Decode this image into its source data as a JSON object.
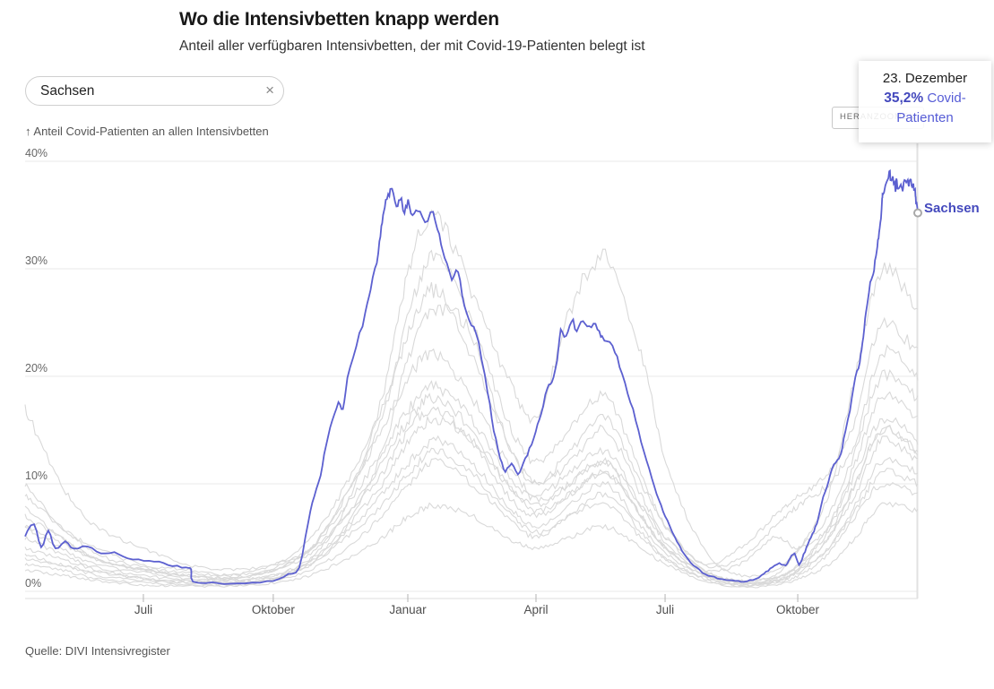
{
  "header": {
    "title": "Wo die Intensivbetten knapp werden",
    "subtitle": "Anteil aller verfügbaren Intensivbetten, der mit Covid-19-Patienten belegt ist"
  },
  "search": {
    "value": "Sachsen",
    "clear_label": "×"
  },
  "zoom_button": {
    "label": "HERANZOOMEN"
  },
  "tooltip": {
    "date": "23. Dezember",
    "value": "35,2",
    "percent": "%",
    "rest": " Covid-Patienten"
  },
  "chart": {
    "y_axis_label": "↑ Anteil Covid-Patienten an allen Intensivbetten",
    "end_label": "Sachsen"
  },
  "source": {
    "text": "Quelle: DIVI Intensivregister"
  },
  "colors": {
    "highlight_line": "#5c60d0",
    "highlight_text": "#4449bd",
    "background_line": "#d9d9d9",
    "grid": "#e9e9e9",
    "axis_line": "#dcdcdc",
    "tick_mark": "#b3b3b3",
    "now_line": "#e2e2e2",
    "marker_stroke": "#a8a8a8"
  },
  "chart_data": {
    "type": "line",
    "title": "Wo die Intensivbetten knapp werden",
    "subtitle": "Anteil aller verfügbaren Intensivbetten, der mit Covid-19-Patienten belegt ist",
    "ylabel": "Anteil Covid-Patienten an allen Intensivbetten",
    "ylim": [
      0,
      40
    ],
    "grid": "horizontal",
    "legend": "none",
    "y_ticks": [
      {
        "value": 0,
        "label": "0%"
      },
      {
        "value": 10,
        "label": "10%"
      },
      {
        "value": 20,
        "label": "20%"
      },
      {
        "value": 30,
        "label": "30%"
      },
      {
        "value": 40,
        "label": "40%"
      }
    ],
    "x_ticks": [
      {
        "t": 0.1325,
        "label": "Juli"
      },
      {
        "t": 0.278,
        "label": "Oktober"
      },
      {
        "t": 0.4287,
        "label": "Januar"
      },
      {
        "t": 0.5723,
        "label": "April"
      },
      {
        "t": 0.7169,
        "label": "Juli"
      },
      {
        "t": 0.8655,
        "label": "Oktober"
      }
    ],
    "highlight": {
      "name": "Sachsen",
      "last_point": {
        "date": "23. Dezember",
        "value": 35.2
      },
      "points": [
        [
          0.0,
          5.2
        ],
        [
          0.01,
          6.2
        ],
        [
          0.018,
          4.1
        ],
        [
          0.026,
          5.6
        ],
        [
          0.034,
          4.0
        ],
        [
          0.045,
          4.6
        ],
        [
          0.055,
          3.9
        ],
        [
          0.07,
          4.2
        ],
        [
          0.085,
          3.5
        ],
        [
          0.1,
          3.6
        ],
        [
          0.115,
          3.1
        ],
        [
          0.133,
          2.9
        ],
        [
          0.15,
          2.7
        ],
        [
          0.165,
          2.4
        ],
        [
          0.18,
          2.2
        ],
        [
          0.186,
          2.1
        ],
        [
          0.188,
          0.9
        ],
        [
          0.21,
          0.8
        ],
        [
          0.23,
          0.7
        ],
        [
          0.255,
          0.8
        ],
        [
          0.278,
          1.0
        ],
        [
          0.295,
          1.6
        ],
        [
          0.307,
          2.2
        ],
        [
          0.317,
          6.4
        ],
        [
          0.324,
          8.9
        ],
        [
          0.331,
          10.8
        ],
        [
          0.337,
          13.6
        ],
        [
          0.344,
          15.8
        ],
        [
          0.351,
          17.5
        ],
        [
          0.356,
          16.8
        ],
        [
          0.361,
          19.7
        ],
        [
          0.371,
          22.8
        ],
        [
          0.381,
          25.8
        ],
        [
          0.387,
          28.1
        ],
        [
          0.394,
          30.8
        ],
        [
          0.398,
          33.1
        ],
        [
          0.401,
          35.0
        ],
        [
          0.404,
          36.2
        ],
        [
          0.408,
          36.9
        ],
        [
          0.411,
          37.2
        ],
        [
          0.416,
          35.8
        ],
        [
          0.42,
          36.6
        ],
        [
          0.425,
          35.4
        ],
        [
          0.429,
          36.2
        ],
        [
          0.434,
          35.0
        ],
        [
          0.44,
          35.6
        ],
        [
          0.448,
          34.4
        ],
        [
          0.457,
          35.2
        ],
        [
          0.464,
          33.0
        ],
        [
          0.47,
          31.0
        ],
        [
          0.478,
          29.2
        ],
        [
          0.485,
          29.8
        ],
        [
          0.492,
          26.4
        ],
        [
          0.5,
          24.9
        ],
        [
          0.508,
          23.1
        ],
        [
          0.518,
          18.6
        ],
        [
          0.525,
          15.0
        ],
        [
          0.532,
          12.5
        ],
        [
          0.538,
          11.2
        ],
        [
          0.545,
          11.9
        ],
        [
          0.552,
          10.8
        ],
        [
          0.558,
          11.9
        ],
        [
          0.565,
          13.2
        ],
        [
          0.572,
          15.0
        ],
        [
          0.578,
          16.6
        ],
        [
          0.585,
          18.9
        ],
        [
          0.59,
          19.3
        ],
        [
          0.596,
          21.5
        ],
        [
          0.6,
          24.4
        ],
        [
          0.606,
          23.6
        ],
        [
          0.612,
          25.3
        ],
        [
          0.618,
          24.2
        ],
        [
          0.625,
          25.2
        ],
        [
          0.632,
          24.6
        ],
        [
          0.639,
          24.8
        ],
        [
          0.645,
          23.8
        ],
        [
          0.649,
          23.3
        ],
        [
          0.658,
          22.7
        ],
        [
          0.666,
          21.0
        ],
        [
          0.675,
          18.5
        ],
        [
          0.684,
          16.0
        ],
        [
          0.693,
          13.0
        ],
        [
          0.702,
          10.5
        ],
        [
          0.71,
          8.5
        ],
        [
          0.717,
          7.0
        ],
        [
          0.725,
          5.5
        ],
        [
          0.733,
          4.2
        ],
        [
          0.742,
          3.0
        ],
        [
          0.752,
          2.2
        ],
        [
          0.762,
          1.6
        ],
        [
          0.772,
          1.3
        ],
        [
          0.782,
          1.1
        ],
        [
          0.792,
          1.0
        ],
        [
          0.802,
          0.9
        ],
        [
          0.812,
          1.0
        ],
        [
          0.822,
          1.3
        ],
        [
          0.83,
          1.8
        ],
        [
          0.837,
          2.2
        ],
        [
          0.845,
          2.6
        ],
        [
          0.852,
          2.4
        ],
        [
          0.857,
          3.1
        ],
        [
          0.862,
          3.5
        ],
        [
          0.867,
          2.5
        ],
        [
          0.872,
          3.4
        ],
        [
          0.877,
          4.4
        ],
        [
          0.882,
          5.3
        ],
        [
          0.887,
          6.4
        ],
        [
          0.894,
          8.7
        ],
        [
          0.9,
          10.2
        ],
        [
          0.904,
          11.4
        ],
        [
          0.91,
          12.2
        ],
        [
          0.914,
          12.7
        ],
        [
          0.917,
          14.2
        ],
        [
          0.924,
          16.9
        ],
        [
          0.93,
          19.8
        ],
        [
          0.935,
          21.4
        ],
        [
          0.938,
          23.1
        ],
        [
          0.941,
          25.2
        ],
        [
          0.944,
          27.2
        ],
        [
          0.948,
          29.2
        ],
        [
          0.951,
          30.0
        ],
        [
          0.954,
          31.7
        ],
        [
          0.956,
          32.8
        ],
        [
          0.958,
          34.2
        ],
        [
          0.96,
          36.5
        ],
        [
          0.961,
          37.2
        ],
        [
          0.965,
          37.9
        ],
        [
          0.968,
          39.0
        ],
        [
          0.97,
          38.2
        ],
        [
          0.972,
          38.5
        ],
        [
          0.975,
          37.5
        ],
        [
          0.976,
          38.3
        ],
        [
          0.978,
          37.3
        ],
        [
          0.981,
          37.9
        ],
        [
          0.983,
          37.5
        ],
        [
          0.985,
          38.3
        ],
        [
          0.988,
          38.1
        ],
        [
          0.99,
          37.8
        ],
        [
          0.991,
          38.2
        ],
        [
          0.993,
          37.9
        ],
        [
          0.995,
          37.8
        ],
        [
          0.997,
          37.2
        ],
        [
          0.998,
          36.4
        ],
        [
          1.0,
          35.2
        ]
      ]
    },
    "background_anchor_t": [
      0,
      0.04,
      0.08,
      0.133,
      0.18,
      0.23,
      0.279,
      0.32,
      0.36,
      0.4,
      0.43,
      0.46,
      0.5,
      0.54,
      0.573,
      0.61,
      0.65,
      0.69,
      0.718,
      0.76,
      0.8,
      0.84,
      0.867,
      0.9,
      0.93,
      0.96,
      1.0
    ],
    "background_series": [
      {
        "values": [
          6,
          4,
          2.5,
          1.8,
          1.2,
          1.0,
          1.5,
          3,
          8,
          18,
          30,
          35,
          28,
          20,
          16,
          26,
          31,
          22,
          12,
          4,
          1.5,
          2,
          4,
          9,
          20,
          30,
          26
        ]
      },
      {
        "values": [
          3,
          2.5,
          1.5,
          1.0,
          0.8,
          0.8,
          1.2,
          2.5,
          6,
          13,
          22,
          26,
          24,
          14,
          10,
          13,
          16,
          10,
          6,
          2.5,
          3,
          6,
          8,
          10,
          14,
          22,
          20
        ]
      },
      {
        "values": [
          8,
          5,
          3,
          2,
          1.5,
          1.2,
          2,
          4,
          9,
          15,
          20,
          22,
          18,
          12,
          9,
          11,
          13,
          8,
          5,
          2,
          0.8,
          1.2,
          2.5,
          6,
          12,
          18,
          16
        ]
      },
      {
        "values": [
          17,
          10,
          6,
          4,
          2.5,
          2,
          2.5,
          4,
          7,
          12,
          16,
          18,
          15,
          10,
          8,
          10,
          12,
          7,
          4,
          1.5,
          0.8,
          1,
          2,
          5,
          10,
          15,
          13
        ]
      },
      {
        "values": [
          5,
          3.5,
          2.2,
          1.5,
          1,
          1,
          1.5,
          3,
          6,
          10,
          14,
          16,
          14,
          9,
          7,
          9,
          11,
          7,
          4,
          1.8,
          1,
          1.3,
          2.2,
          5,
          9,
          14,
          12
        ]
      },
      {
        "values": [
          4,
          3,
          2,
          1.2,
          1,
          0.8,
          1.3,
          2.8,
          5.5,
          9,
          12,
          14,
          12,
          8,
          6,
          8,
          10,
          6,
          3.5,
          1.5,
          0.7,
          1,
          2,
          4,
          8,
          12,
          11
        ]
      },
      {
        "values": [
          10,
          6,
          4,
          2.5,
          2,
          1.5,
          2.2,
          4,
          8,
          13,
          17,
          19,
          16,
          11,
          8.5,
          10,
          12,
          8,
          4.5,
          2,
          2.5,
          5,
          4,
          6,
          11,
          16,
          14
        ]
      },
      {
        "values": [
          2.5,
          2,
          1.2,
          0.8,
          0.6,
          0.6,
          1,
          2,
          4,
          7,
          10,
          12,
          10,
          7,
          5,
          7,
          8,
          5,
          3,
          1.2,
          0.5,
          0.8,
          1.5,
          3.5,
          7,
          10,
          9
        ]
      },
      {
        "values": [
          6,
          4.5,
          3,
          2,
          1.5,
          1.2,
          2,
          3.5,
          7,
          11,
          15,
          17,
          14,
          10,
          7.5,
          9,
          11,
          7,
          4,
          1.8,
          0.8,
          1.2,
          2.5,
          5.5,
          10,
          15,
          13
        ]
      },
      {
        "values": [
          3.5,
          2.5,
          1.8,
          1.2,
          0.8,
          0.7,
          1.2,
          2.5,
          5,
          8,
          11,
          13,
          11,
          7.5,
          5.5,
          7,
          9,
          5.5,
          3,
          1.3,
          0.6,
          0.9,
          1.8,
          4,
          7.5,
          11,
          10
        ]
      },
      {
        "values": [
          7,
          5,
          3,
          2,
          1.5,
          1.3,
          2,
          4,
          9,
          16,
          26,
          31,
          25,
          16,
          12,
          15,
          18,
          11,
          6,
          2.5,
          4,
          7,
          9,
          11,
          16,
          25,
          22
        ]
      },
      {
        "values": [
          2,
          1.5,
          1,
          0.6,
          0.5,
          0.5,
          0.8,
          1.5,
          3,
          5,
          7,
          8,
          7,
          5,
          4,
          5,
          6,
          4,
          2.5,
          1,
          0.4,
          0.6,
          1.2,
          2.5,
          5,
          8,
          7.5
        ]
      },
      {
        "values": [
          9,
          6,
          3.5,
          2.2,
          1.8,
          1.5,
          2.5,
          5,
          10,
          17,
          24,
          28,
          22,
          14,
          10,
          12,
          15,
          9,
          5,
          2,
          1,
          1.5,
          4,
          7,
          13,
          20,
          18
        ]
      }
    ]
  }
}
